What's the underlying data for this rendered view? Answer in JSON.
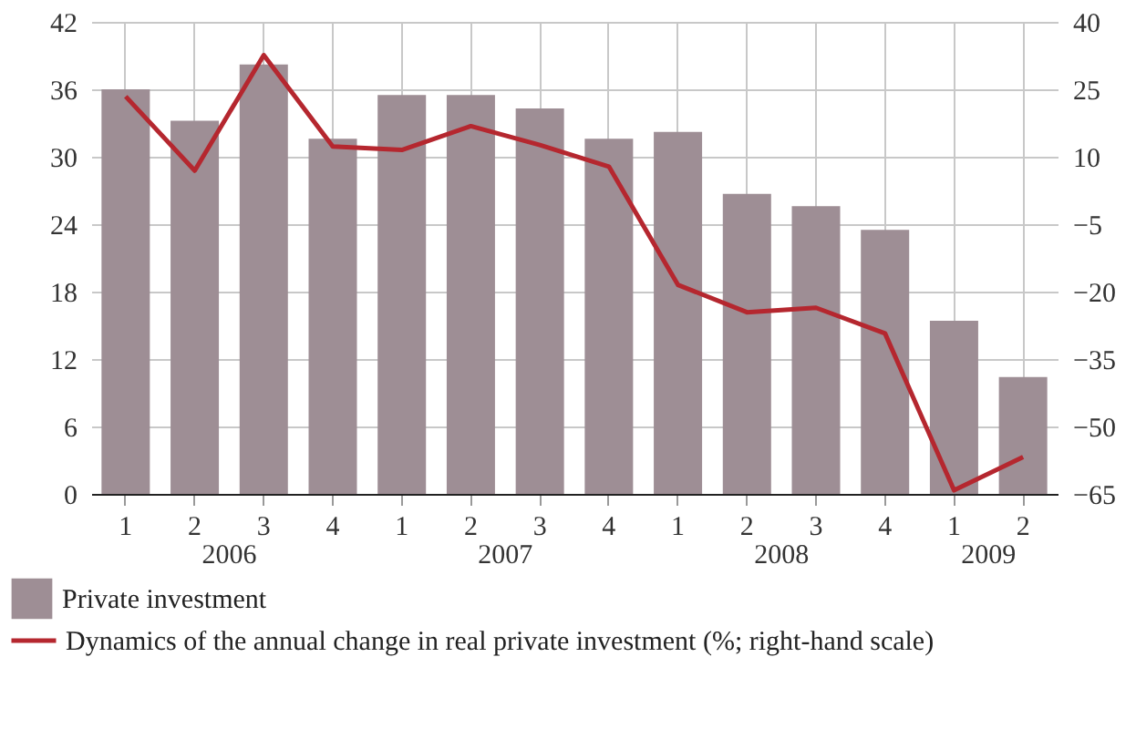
{
  "chart_data": {
    "type": "bar",
    "categories": [
      "1",
      "2",
      "3",
      "4",
      "1",
      "2",
      "3",
      "4",
      "1",
      "2",
      "3",
      "4",
      "1",
      "2"
    ],
    "series": [
      {
        "name": "Private investment",
        "color": "#9e8e95",
        "values": [
          36,
          33.2,
          38.2,
          31.6,
          35.5,
          35.5,
          34.3,
          31.6,
          32.2,
          26.7,
          25.6,
          23.5,
          15.4,
          10.4
        ]
      },
      {
        "type": "line",
        "axis": "y2",
        "name": "Dynamics of the annual change in real private investment (%; right-hand scale)",
        "color": "#b5272f",
        "values": [
          23.4,
          6.9,
          32.6,
          12.3,
          11.5,
          16.8,
          12.6,
          7.8,
          -18.5,
          -24.6,
          -23.6,
          -29.3,
          -64.2,
          -56.8
        ]
      }
    ],
    "ylim": [
      0,
      42
    ],
    "yticks": [
      0,
      6,
      12,
      18,
      24,
      30,
      36,
      42
    ],
    "y2lim": [
      -65,
      40
    ],
    "y2ticks": [
      -65,
      -50,
      -35,
      -20,
      -5,
      10,
      25,
      40
    ],
    "grid": true,
    "legend": "bottom",
    "annotations": [
      "2006",
      "2007",
      "2008",
      "2009"
    ]
  }
}
